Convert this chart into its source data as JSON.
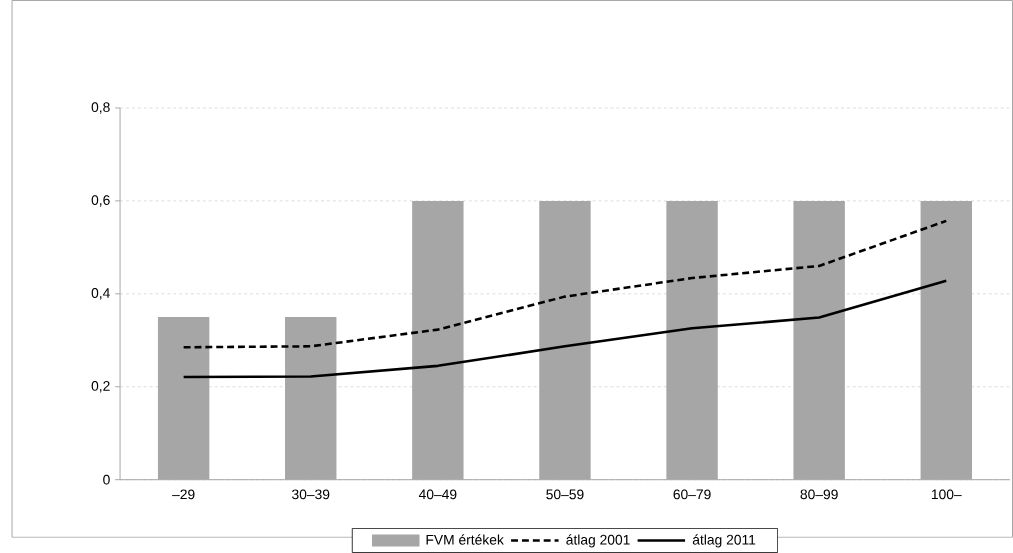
{
  "chart_data": {
    "type": "line",
    "categories": [
      "–29",
      "30–39",
      "40–49",
      "50–59",
      "60–79",
      "80–99",
      "100–"
    ],
    "series": [
      {
        "name": "FVM értékek",
        "type": "bar",
        "color": "#a6a6a6",
        "values": [
          0.35,
          0.35,
          0.6,
          0.6,
          0.6,
          0.6,
          0.6
        ]
      },
      {
        "name": "átlag 2001",
        "color": "#000000",
        "line_style": "dashed",
        "values": [
          0.285,
          0.287,
          0.323,
          0.394,
          0.434,
          0.46,
          0.557
        ]
      },
      {
        "name": "átlag 2011",
        "color": "#000000",
        "line_style": "solid",
        "values": [
          0.221,
          0.222,
          0.245,
          0.287,
          0.326,
          0.349,
          0.428
        ]
      }
    ],
    "ylim": [
      0,
      0.8
    ],
    "yticks": [
      0,
      {
        "value": 0.2,
        "label": "0,2"
      },
      {
        "value": 0.4,
        "label": "0,4"
      },
      {
        "value": 0.6,
        "label": "0,6"
      },
      {
        "value": 0.8,
        "label": "0,8"
      }
    ],
    "grid": "y",
    "legend": "bottom",
    "marker": "none"
  }
}
